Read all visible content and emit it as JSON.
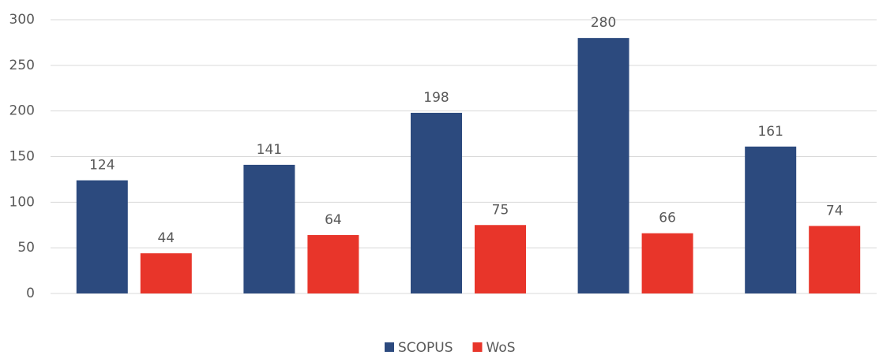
{
  "chart_data": {
    "type": "bar",
    "categories": [
      null,
      null,
      null,
      null,
      null
    ],
    "series": [
      {
        "name": "SCOPUS",
        "color": "#2c4a7e",
        "values": [
          124,
          141,
          198,
          280,
          161
        ]
      },
      {
        "name": "WoS",
        "color": "#e8352a",
        "values": [
          44,
          64,
          75,
          66,
          74
        ]
      }
    ],
    "ylim": [
      0,
      300
    ],
    "yticks": [
      0,
      50,
      100,
      150,
      200,
      250,
      300
    ],
    "grid": true,
    "legend": "bottom"
  }
}
